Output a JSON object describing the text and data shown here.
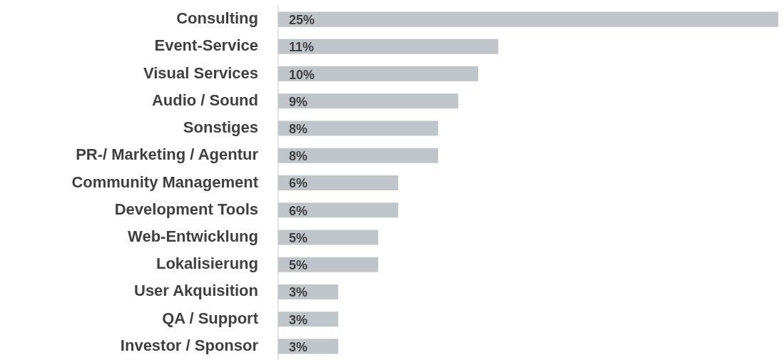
{
  "chart_data": {
    "type": "bar",
    "orientation": "horizontal",
    "categories": [
      "Consulting",
      "Event-Service",
      "Visual Services",
      "Audio / Sound",
      "Sonstiges",
      "PR-/ Marketing / Agentur",
      "Community Management",
      "Development Tools",
      "Web-Entwicklung",
      "Lokalisierung",
      "User Akquisition",
      "QA / Support",
      "Investor / Sponsor"
    ],
    "values": [
      25,
      11,
      10,
      9,
      8,
      8,
      6,
      6,
      5,
      5,
      3,
      3,
      3
    ],
    "value_labels": [
      "25%",
      "11%",
      "10%",
      "9%",
      "8%",
      "8%",
      "6%",
      "6%",
      "5%",
      "5%",
      "3%",
      "3%",
      "3%"
    ],
    "color": "#c0c5ca",
    "legend": false
  }
}
